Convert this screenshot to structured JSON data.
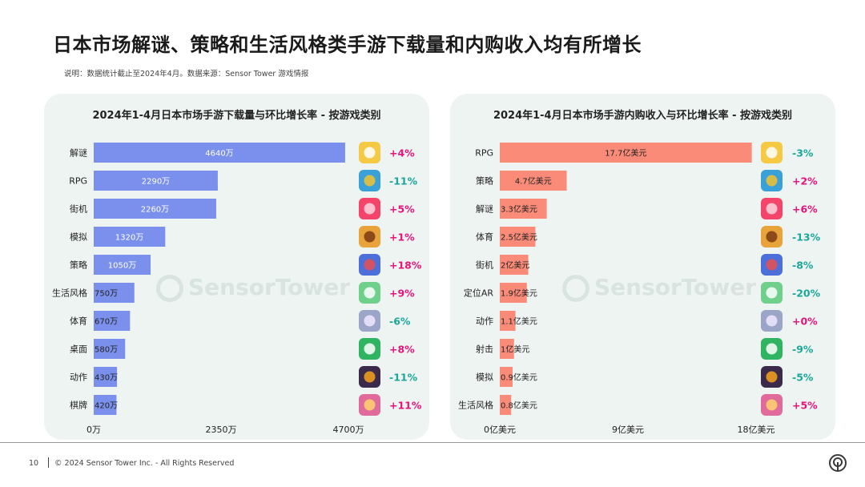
{
  "page": {
    "title": "日本市场解谜、策略和生活风格类手游下载量和内购收入均有所增长",
    "note": "说明：数据统计截止至2024年4月。数据来源：Sensor Tower 游戏情报",
    "watermark": "SensorTower",
    "page_number": "10",
    "copyright": "© 2024 Sensor Tower Inc. - All Rights Reserved"
  },
  "colors": {
    "downloads_bar": "#7b90ec",
    "revenue_bar": "#f98b78",
    "positive": "#e6147a",
    "negative": "#1aa79a",
    "panel_bg": "#eef4f2"
  },
  "chart_data": [
    {
      "type": "bar",
      "orientation": "horizontal",
      "title": "2024年1-4月日本市场手游下载量与环比增长率 - 按游戏类别",
      "categories": [
        "解谜",
        "RPG",
        "街机",
        "模拟",
        "策略",
        "生活风格",
        "体育",
        "桌面",
        "动作",
        "棋牌"
      ],
      "values": [
        4640,
        2290,
        2260,
        1320,
        1050,
        750,
        670,
        580,
        430,
        420
      ],
      "value_labels": [
        "4640万",
        "2290万",
        "2260万",
        "1320万",
        "1050万",
        "750万",
        "670万",
        "580万",
        "430万",
        "420万"
      ],
      "growth": [
        "+4%",
        "-11%",
        "+5%",
        "+1%",
        "+18%",
        "+9%",
        "-6%",
        "+8%",
        "-11%",
        "+11%"
      ],
      "icons": [
        "puzzle-game-icon",
        "rpg-game-icon",
        "arcade-game-icon",
        "simulation-game-icon",
        "strategy-game-icon",
        "lifestyle-game-icon",
        "sports-game-icon",
        "board-game-icon",
        "action-game-icon",
        "card-game-icon"
      ],
      "xlim": [
        0,
        4700
      ],
      "xticks": [
        "0万",
        "2350万",
        "4700万"
      ],
      "unit": "万"
    },
    {
      "type": "bar",
      "orientation": "horizontal",
      "title": "2024年1-4月日本市场手游内购收入与环比增长率 - 按游戏类别",
      "categories": [
        "RPG",
        "策略",
        "解谜",
        "体育",
        "街机",
        "定位AR",
        "动作",
        "射击",
        "模拟",
        "生活风格"
      ],
      "values": [
        17.7,
        4.7,
        3.3,
        2.5,
        2,
        1.9,
        1.1,
        1,
        0.9,
        0.8
      ],
      "value_labels": [
        "17.7亿美元",
        "4.7亿美元",
        "3.3亿美元",
        "2.5亿美元",
        "2亿美元",
        "1.9亿美元",
        "1.1亿美元",
        "1亿美元",
        "0.9亿美元",
        "0.8亿美元"
      ],
      "growth": [
        "-3%",
        "+2%",
        "+6%",
        "-13%",
        "-8%",
        "-20%",
        "+0%",
        "-9%",
        "-5%",
        "+5%"
      ],
      "icons": [
        "rpg-game-icon",
        "strategy-game-icon",
        "puzzle-game-icon",
        "sports-game-icon",
        "arcade-game-icon",
        "location-ar-game-icon",
        "action-game-icon",
        "shooter-game-icon",
        "simulation-game-icon",
        "lifestyle-game-icon"
      ],
      "xlim": [
        0,
        18
      ],
      "xticks": [
        "0亿美元",
        "9亿美元",
        "18亿美元"
      ],
      "unit": "亿美元"
    }
  ]
}
